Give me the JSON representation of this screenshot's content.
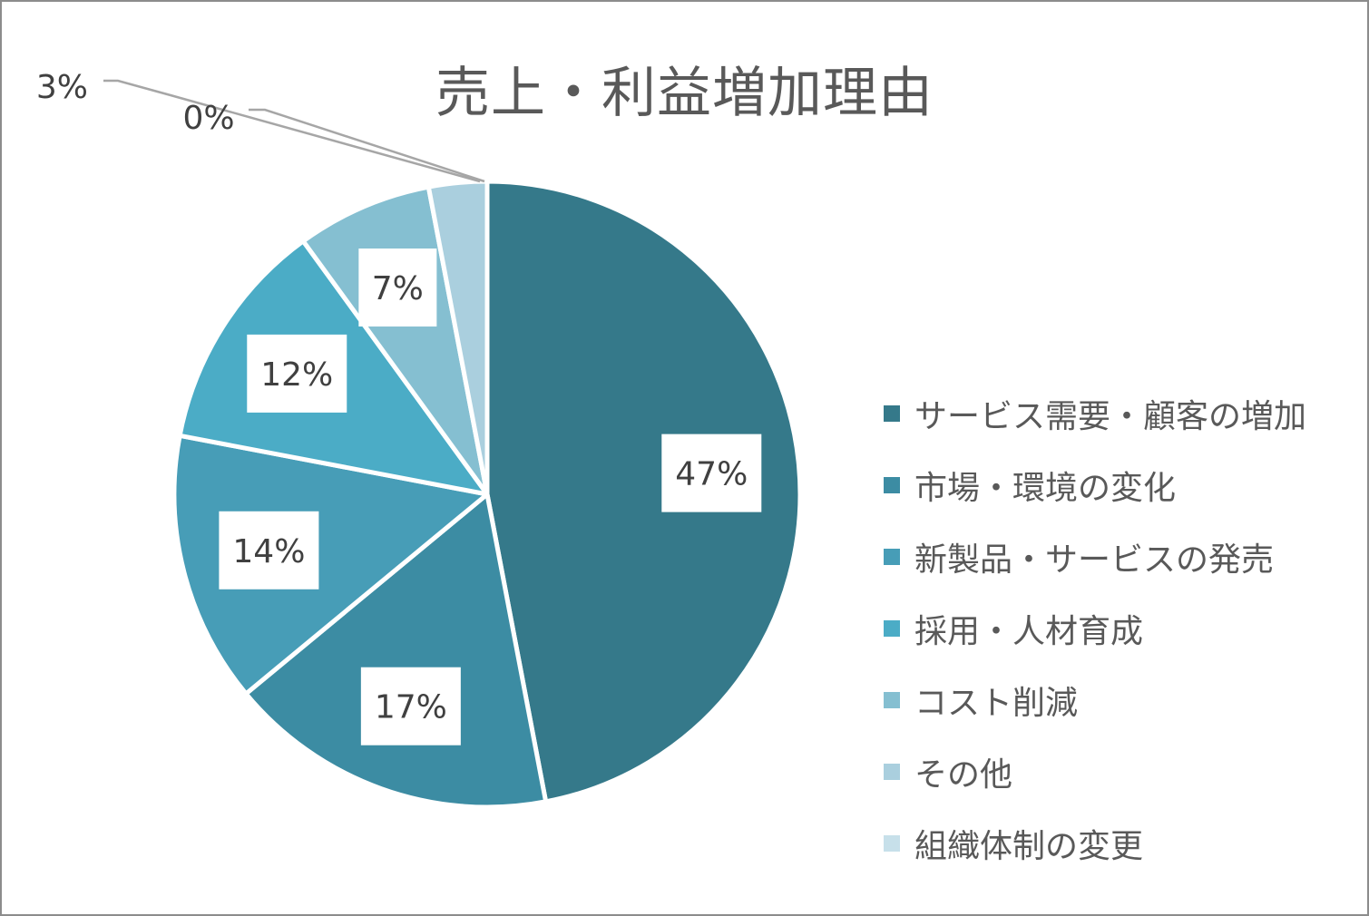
{
  "chart_data": {
    "type": "pie",
    "title": "売上・利益増加理由",
    "categories": [
      "サービス需要・顧客の増加",
      "市場・環境の変化",
      "新製品・サービスの発売",
      "採用・人材育成",
      "コスト削減",
      "その他",
      "組織体制の変更"
    ],
    "values": [
      47,
      17,
      14,
      12,
      7,
      3,
      0
    ],
    "data_labels": [
      "47%",
      "17%",
      "14%",
      "12%",
      "7%",
      "3%",
      "0%"
    ],
    "colors": [
      "#35798a",
      "#3c8ca3",
      "#479db7",
      "#4bacc6",
      "#85bfd1",
      "#aacfde",
      "#c7e0ea"
    ],
    "legend_position": "right",
    "start_angle": "top, clockwise"
  }
}
